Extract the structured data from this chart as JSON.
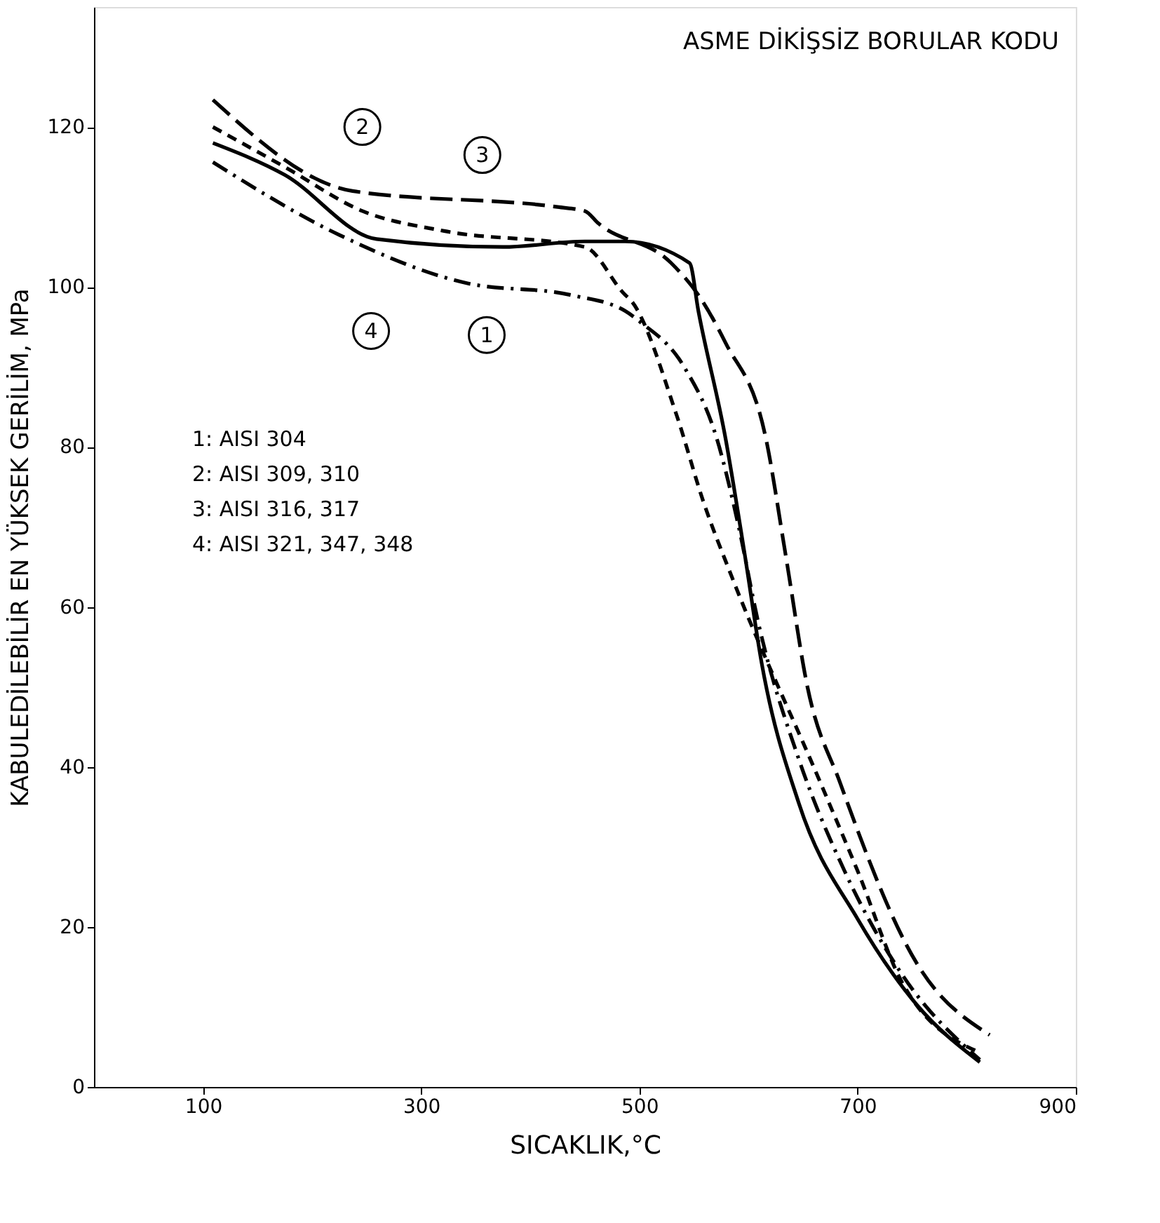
{
  "chart_data": {
    "type": "line",
    "title": "ASME DİKİŞSİZ BORULAR KODU",
    "xlabel": "SICAKLIK,°C",
    "ylabel": "KABULEDİLEBİLİR EN YÜKSEK GERİLİM, MPa",
    "xlim": [
      0,
      900
    ],
    "ylim": [
      0,
      135
    ],
    "xticks": [
      100,
      300,
      500,
      700,
      900
    ],
    "yticks": [
      0,
      20,
      40,
      60,
      80,
      100,
      120
    ],
    "grid": false,
    "marker": "none",
    "series": [
      {
        "color": "#000000",
        "line_style": "dashdot",
        "x": [
          109,
          225,
          341,
          437,
          487,
          500,
          541,
          571,
          591,
          609,
          646,
          688,
          741,
          812
        ],
        "values": [
          115.6,
          106.5,
          100.5,
          99,
          97,
          95.7,
          90,
          81,
          70,
          58,
          41,
          27,
          14,
          3.4
        ]
      },
      {
        "color": "#000000",
        "line_style": "dashed",
        "x": [
          109,
          175,
          246,
          321,
          450,
          487,
          491,
          534,
          559,
          584,
          666,
          700,
          741,
          812
        ],
        "values": [
          120,
          115,
          109.5,
          107,
          105,
          99,
          98.5,
          84,
          73,
          64,
          38,
          27,
          13,
          4.3
        ]
      },
      {
        "color": "#000000",
        "line_style": "longdash",
        "x": [
          109,
          237,
          425,
          450,
          462,
          529,
          554,
          579,
          616,
          634,
          654,
          684,
          754,
          821
        ],
        "values": [
          123.4,
          112,
          110,
          109.5,
          108,
          103,
          99,
          93,
          81,
          66.5,
          50,
          38,
          15.5,
          6.5
        ]
      },
      {
        "color": "#000000",
        "line_style": "solid",
        "x": [
          109,
          175,
          259,
          375,
          450,
          487,
          546,
          554,
          579,
          596,
          612,
          646,
          700,
          754,
          812
        ],
        "values": [
          118,
          114,
          106,
          105,
          105.7,
          105.7,
          103,
          97,
          81,
          67,
          53,
          35.5,
          21,
          10.3,
          3.1
        ]
      }
    ],
    "annotations": [
      {
        "text": "1",
        "x": 360,
        "y": 94
      },
      {
        "text": "2",
        "x": 246,
        "y": 120
      },
      {
        "text": "3",
        "x": 356,
        "y": 116.5
      },
      {
        "text": "4",
        "x": 254,
        "y": 94.5
      },
      "1: AISI 304",
      "2: AISI 309, 310",
      "3: AISI 316, 317",
      "4: AISI 321, 347, 348"
    ]
  }
}
